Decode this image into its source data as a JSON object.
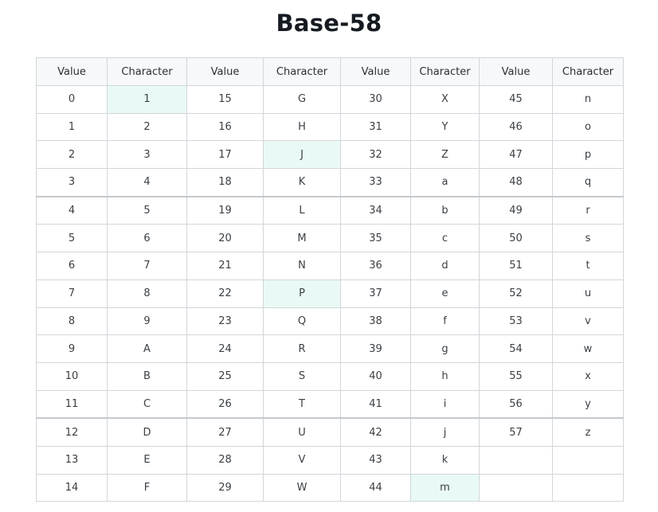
{
  "title": "Base-58",
  "headers": [
    "Value",
    "Character",
    "Value",
    "Character",
    "Value",
    "Character",
    "Value",
    "Character"
  ],
  "rows": [
    [
      "0",
      "1",
      "15",
      "G",
      "30",
      "X",
      "45",
      "n"
    ],
    [
      "1",
      "2",
      "16",
      "H",
      "31",
      "Y",
      "46",
      "o"
    ],
    [
      "2",
      "3",
      "17",
      "J",
      "32",
      "Z",
      "47",
      "p"
    ],
    [
      "3",
      "4",
      "18",
      "K",
      "33",
      "a",
      "48",
      "q"
    ],
    [
      "4",
      "5",
      "19",
      "L",
      "34",
      "b",
      "49",
      "r"
    ],
    [
      "5",
      "6",
      "20",
      "M",
      "35",
      "c",
      "50",
      "s"
    ],
    [
      "6",
      "7",
      "21",
      "N",
      "36",
      "d",
      "51",
      "t"
    ],
    [
      "7",
      "8",
      "22",
      "P",
      "37",
      "e",
      "52",
      "u"
    ],
    [
      "8",
      "9",
      "23",
      "Q",
      "38",
      "f",
      "53",
      "v"
    ],
    [
      "9",
      "A",
      "24",
      "R",
      "39",
      "g",
      "54",
      "w"
    ],
    [
      "10",
      "B",
      "25",
      "S",
      "40",
      "h",
      "55",
      "x"
    ],
    [
      "11",
      "C",
      "26",
      "T",
      "41",
      "i",
      "56",
      "y"
    ],
    [
      "12",
      "D",
      "27",
      "U",
      "42",
      "j",
      "57",
      "z"
    ],
    [
      "13",
      "E",
      "28",
      "V",
      "43",
      "k",
      "",
      ""
    ],
    [
      "14",
      "F",
      "29",
      "W",
      "44",
      "m",
      "",
      ""
    ]
  ],
  "highlighted_characters": [
    "1",
    "J",
    "P",
    "m"
  ],
  "colors": {
    "highlight": "#e9faf6",
    "header_bg": "#f6f8fa",
    "border": "#d2d6da"
  }
}
